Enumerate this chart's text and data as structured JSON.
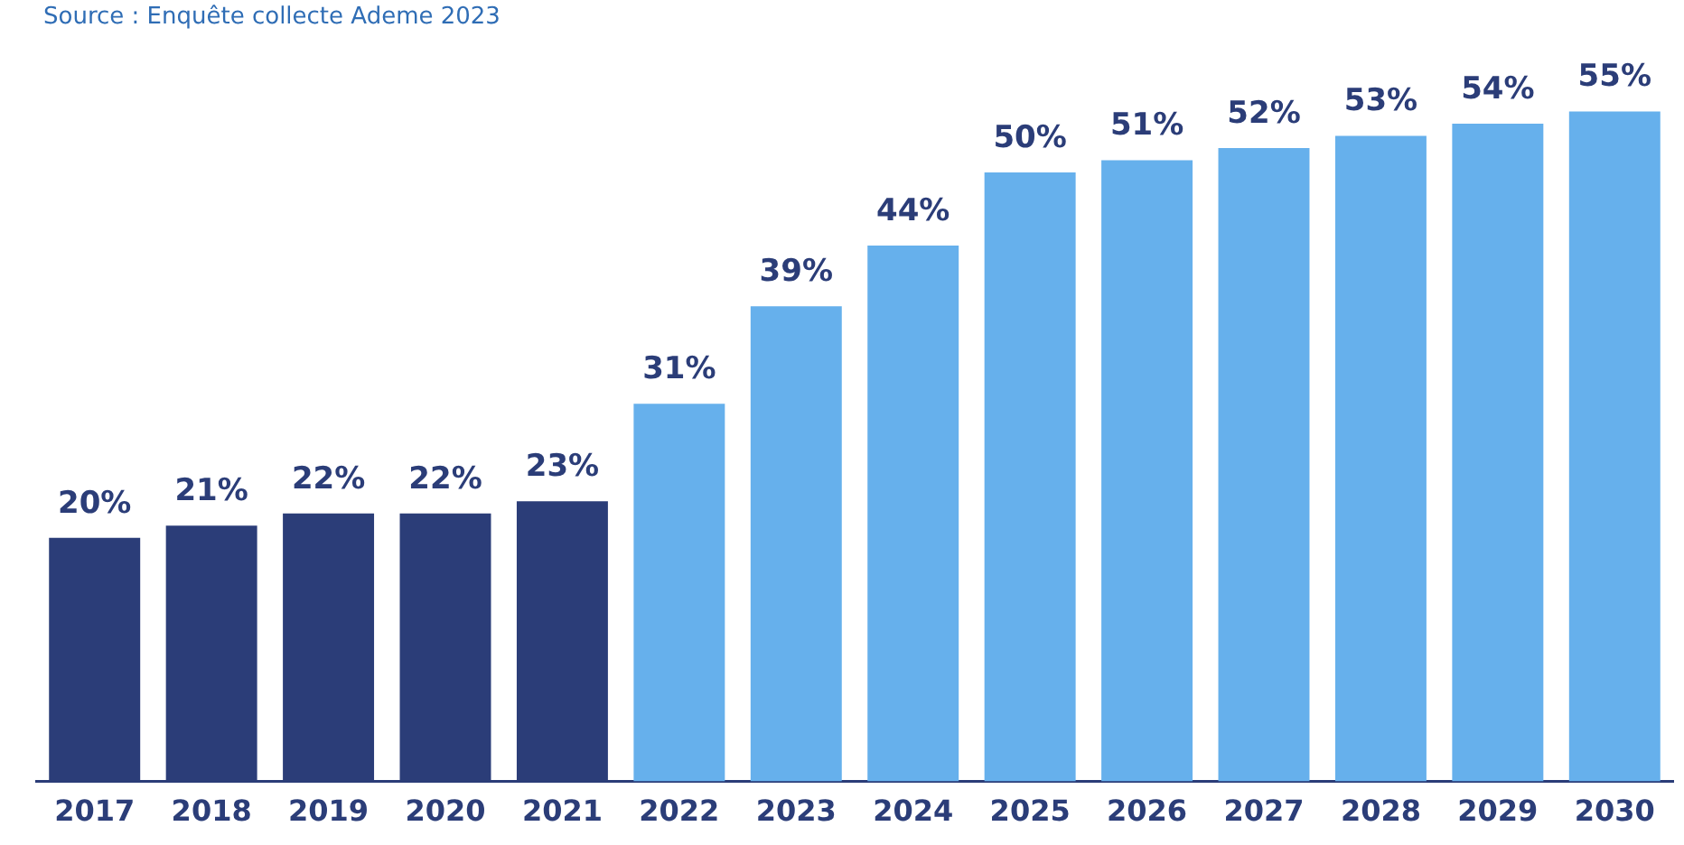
{
  "chart_data": {
    "type": "bar",
    "annotations": [
      "Source : Enquête collecte Ademe 2023"
    ],
    "categories": [
      "2017",
      "2018",
      "2019",
      "2020",
      "2021",
      "2022",
      "2023",
      "2024",
      "2025",
      "2026",
      "2027",
      "2028",
      "2029",
      "2030"
    ],
    "values": [
      20,
      21,
      22,
      22,
      23,
      31,
      39,
      44,
      50,
      51,
      52,
      53,
      54,
      55
    ],
    "colors": [
      "#2b3d78",
      "#2b3d78",
      "#2b3d78",
      "#2b3d78",
      "#2b3d78",
      "#66b0ec",
      "#66b0ec",
      "#66b0ec",
      "#66b0ec",
      "#66b0ec",
      "#66b0ec",
      "#66b0ec",
      "#66b0ec",
      "#66b0ec"
    ],
    "value_labels": [
      "20%",
      "21%",
      "22%",
      "22%",
      "23%",
      "31%",
      "39%",
      "44%",
      "50%",
      "51%",
      "52%",
      "53%",
      "54%",
      "55%"
    ],
    "grid": false,
    "legend": false
  }
}
